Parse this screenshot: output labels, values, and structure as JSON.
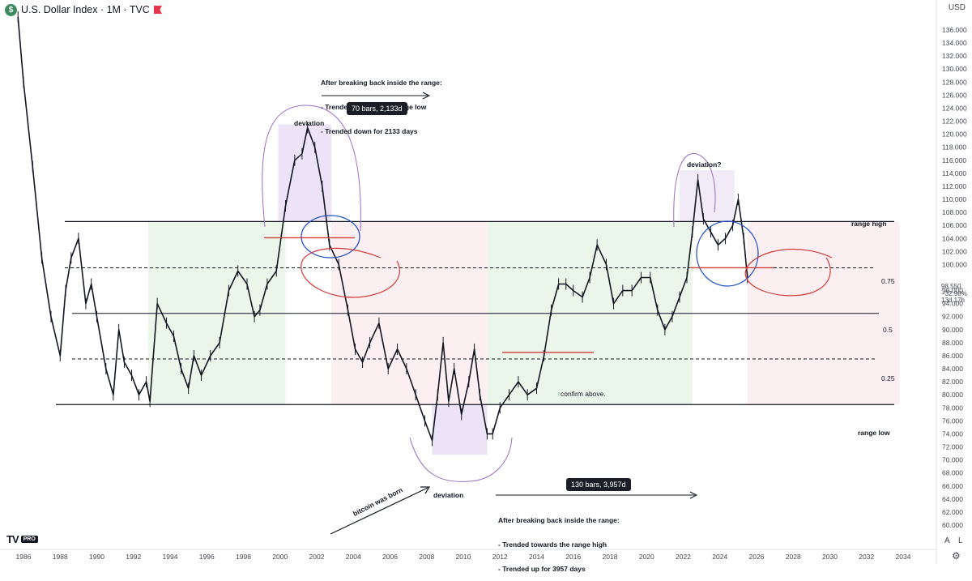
{
  "header": {
    "symbol_icon": "dollar-coin-icon",
    "title": "U.S. Dollar Index · 1M · TVC",
    "flag_icon": "red-flag-icon"
  },
  "currency": "USD",
  "price_label": {
    "value": "98.550",
    "change": "−32.98%",
    "countdown": "13d 17h"
  },
  "bottom_buttons": {
    "auto": "A",
    "log": "L",
    "settings_icon": "gear-icon"
  },
  "logo": {
    "mark": "TV",
    "badge": "PRO"
  },
  "annotations": {
    "top_note": [
      "After breaking back inside the range:",
      "- Trended towards the range low",
      "- Trended down for 2133 days"
    ],
    "top_pill": "70 bars, 2,133d",
    "bottom_note": [
      "After breaking back inside the range:",
      "- Trended towards the range high",
      "- Trended up for 3957 days"
    ],
    "bottom_pill": "130 bars, 3,957d",
    "deviation_top": "deviation",
    "deviation_bottom": "deviation",
    "deviation_recent": "deviation?",
    "bitcoin": "bitcoin was born",
    "confirm": "confirm above.",
    "range_high": "range high",
    "range_low": "range low",
    "fib_075": "0.75",
    "fib_05": "0.5",
    "fib_025": "0.25"
  },
  "chart_data": {
    "type": "line",
    "y_axis_ticks": [
      136,
      134,
      132,
      130,
      128,
      126,
      124,
      122,
      120,
      118,
      116,
      114,
      112,
      110,
      108,
      106,
      104,
      102,
      100,
      96,
      94,
      92,
      90,
      88,
      86,
      84,
      82,
      80,
      78,
      76,
      74,
      72,
      70,
      68,
      66,
      64,
      62,
      60
    ],
    "x_axis_ticks": [
      "1986",
      "1988",
      "1990",
      "1992",
      "1994",
      "1996",
      "1998",
      "2000",
      "2002",
      "2004",
      "2006",
      "2008",
      "2010",
      "2012",
      "2014",
      "2016",
      "2018",
      "2020",
      "2022",
      "2024",
      "2026",
      "2028",
      "2030",
      "2032",
      "2034"
    ],
    "ylim": [
      59,
      139
    ],
    "xlim": [
      1985.5,
      2035.5
    ],
    "levels": {
      "range_high": 106.6,
      "fib_075": 99.5,
      "fib_05": 92.5,
      "fib_025": 85.5,
      "range_low": 78.5
    },
    "series": [
      {
        "x": [
          1985.7,
          1986.0,
          1986.5,
          1987.0,
          1987.5,
          1988.0,
          1988.3,
          1988.6,
          1989.0,
          1989.4,
          1989.7,
          1990.0,
          1990.5,
          1990.9,
          1991.2,
          1991.5,
          1991.9,
          1992.3,
          1992.7,
          1992.9,
          1993.3,
          1993.8,
          1994.2,
          1994.6,
          1995.0,
          1995.3,
          1995.7,
          1996.2,
          1996.7,
          1997.2,
          1997.7,
          1998.2,
          1998.6,
          1998.9,
          1999.3,
          1999.8,
          2000.3,
          2000.8,
          2001.2,
          2001.5,
          2001.9,
          2002.3,
          2002.7,
          2003.2,
          2003.7,
          2004.1,
          2004.5,
          2004.9,
          2005.4,
          2005.9,
          2006.4,
          2006.9,
          2007.4,
          2007.9,
          2008.3,
          2008.6,
          2008.9,
          2009.2,
          2009.5,
          2009.9,
          2010.3,
          2010.6,
          2010.9,
          2011.3,
          2011.6,
          2012.0,
          2012.5,
          2013.0,
          2013.5,
          2014.0,
          2014.4,
          2014.8,
          2015.2,
          2015.6,
          2016.0,
          2016.5,
          2016.9,
          2017.3,
          2017.8,
          2018.2,
          2018.7,
          2019.2,
          2019.7,
          2020.2,
          2020.6,
          2021.0,
          2021.4,
          2021.8,
          2022.2,
          2022.5,
          2022.8,
          2023.1,
          2023.5,
          2023.9,
          2024.3,
          2024.7,
          2025.0,
          2025.3,
          2025.5
        ],
        "y": [
          138,
          128,
          115,
          101,
          92,
          86,
          96,
          101,
          104,
          94,
          97,
          92,
          84,
          80,
          90,
          85,
          83,
          80,
          82,
          79,
          94,
          91,
          89,
          84,
          81,
          86,
          83,
          86,
          88,
          96,
          99,
          97,
          92,
          93,
          97,
          99,
          109,
          116,
          117,
          121,
          118,
          112,
          103,
          100,
          93,
          87,
          85,
          88,
          91,
          84,
          87,
          84,
          80,
          76,
          73,
          80,
          88,
          79,
          84,
          77,
          82,
          87,
          80,
          74,
          74,
          78,
          80,
          82,
          80,
          81,
          86,
          93,
          97,
          97,
          96,
          95,
          98,
          103,
          100,
          94,
          96,
          96,
          98,
          98,
          93,
          90,
          92,
          95,
          98,
          105,
          113,
          107,
          105,
          103,
          104,
          106,
          110,
          104,
          98
        ]
      }
    ]
  }
}
